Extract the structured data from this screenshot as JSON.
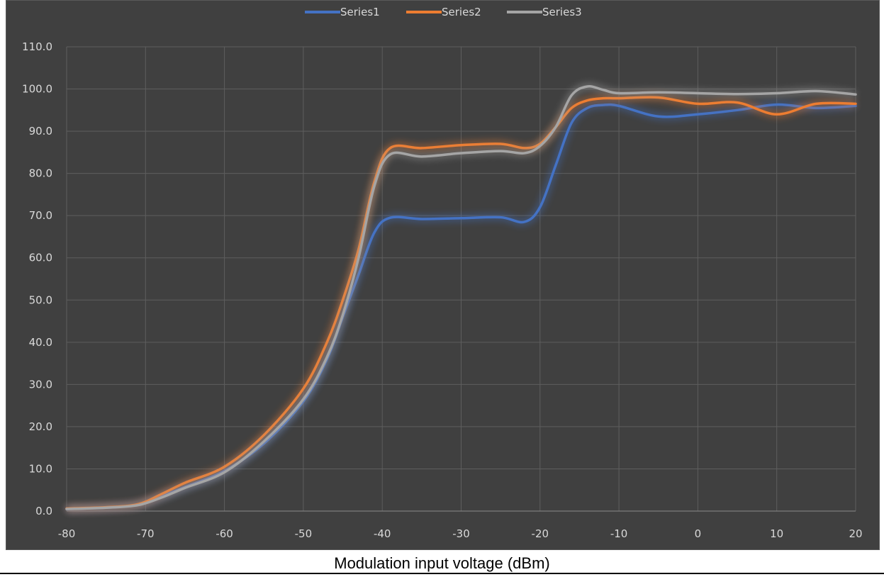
{
  "chart_data": {
    "type": "line",
    "title": "",
    "xlabel": "Modulation input voltage (dBm)",
    "ylabel": "",
    "xlim": [
      -80,
      20
    ],
    "ylim": [
      0,
      110
    ],
    "xticks": [
      -80,
      -70,
      -60,
      -50,
      -40,
      -30,
      -20,
      -10,
      0,
      10,
      20
    ],
    "yticks": [
      0,
      10,
      20,
      30,
      40,
      50,
      60,
      70,
      80,
      90,
      100,
      110
    ],
    "ytick_format": "0.0",
    "grid": true,
    "legend_position": "top-center",
    "background": "#404040",
    "x": [
      -80,
      -75,
      -71,
      -68,
      -65,
      -60,
      -55,
      -50,
      -47,
      -45,
      -43,
      -41,
      -39,
      -35,
      -30,
      -25,
      -22,
      -20,
      -18,
      -16,
      -14,
      -12,
      -10,
      -5,
      0,
      5,
      10,
      15,
      20
    ],
    "series": [
      {
        "name": "Series1",
        "color": "#4472C4",
        "values": [
          0.5,
          0.8,
          1.5,
          3.5,
          5.7,
          9.5,
          16.0,
          26.0,
          36.0,
          46.0,
          56.0,
          66.0,
          69.5,
          69.2,
          69.4,
          69.6,
          68.5,
          72.0,
          82.0,
          92.0,
          95.5,
          96.2,
          96.0,
          93.5,
          94.0,
          95.0,
          96.3,
          95.5,
          96.0
        ]
      },
      {
        "name": "Series2",
        "color": "#ED7D31",
        "values": [
          0.6,
          0.9,
          1.6,
          4.0,
          6.7,
          10.5,
          18.0,
          29.0,
          40.0,
          50.0,
          62.0,
          78.0,
          86.0,
          86.0,
          86.7,
          87.0,
          86.0,
          87.0,
          91.0,
          95.5,
          97.3,
          97.8,
          97.8,
          98.0,
          96.5,
          96.8,
          94.0,
          96.5,
          96.5
        ]
      },
      {
        "name": "Series3",
        "color": "#A5A5A5",
        "values": [
          0.5,
          0.8,
          1.4,
          3.2,
          5.5,
          9.2,
          16.5,
          26.5,
          36.5,
          46.5,
          60.0,
          77.0,
          84.5,
          84.0,
          84.8,
          85.3,
          84.8,
          86.5,
          91.0,
          98.5,
          100.6,
          99.8,
          99.0,
          99.2,
          99.0,
          98.8,
          99.0,
          99.5,
          98.7
        ]
      }
    ]
  }
}
